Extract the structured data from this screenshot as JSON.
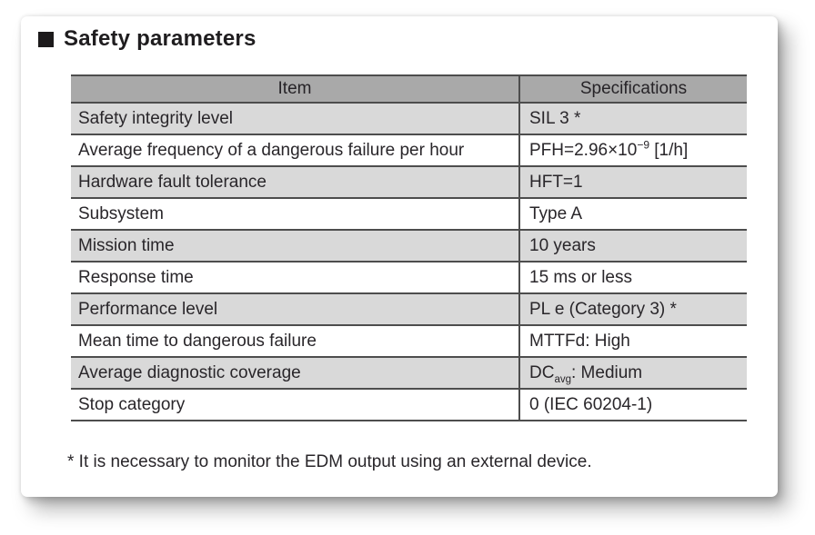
{
  "title": "Safety parameters",
  "table": {
    "headers": [
      "Item",
      "Specifications"
    ],
    "rows": [
      {
        "item": "Safety integrity level",
        "spec": [
          {
            "t": "SIL 3 *"
          }
        ]
      },
      {
        "item": "Average frequency of a dangerous failure per hour",
        "spec": [
          {
            "t": "PFH=2.96×10"
          },
          {
            "sup": "−9"
          },
          {
            "t": " [1/h]"
          }
        ]
      },
      {
        "item": "Hardware fault tolerance",
        "spec": [
          {
            "t": "HFT=1"
          }
        ]
      },
      {
        "item": "Subsystem",
        "spec": [
          {
            "t": "Type A"
          }
        ]
      },
      {
        "item": "Mission time",
        "spec": [
          {
            "t": "10 years"
          }
        ]
      },
      {
        "item": "Response time",
        "spec": [
          {
            "t": "15 ms or less"
          }
        ]
      },
      {
        "item": "Performance level",
        "spec": [
          {
            "t": "PL e (Category 3) *"
          }
        ]
      },
      {
        "item": "Mean time to dangerous failure",
        "spec": [
          {
            "t": "MTTFd: High"
          }
        ]
      },
      {
        "item": "Average diagnostic coverage",
        "spec": [
          {
            "t": "DC"
          },
          {
            "sub": "avg"
          },
          {
            "t": ": Medium"
          }
        ]
      },
      {
        "item": "Stop category",
        "spec": [
          {
            "t": "0 (IEC 60204-1)"
          }
        ]
      }
    ]
  },
  "footnote": "* It is necessary to monitor the EDM output using an external device.",
  "colors": {
    "header_bg": "#a9a9a9",
    "row_alt_bg": "#d9d9d9",
    "row_bg": "#ffffff",
    "table_border": "#4d4d4d",
    "text": "#29262a",
    "title_text": "#1f1d1f"
  }
}
